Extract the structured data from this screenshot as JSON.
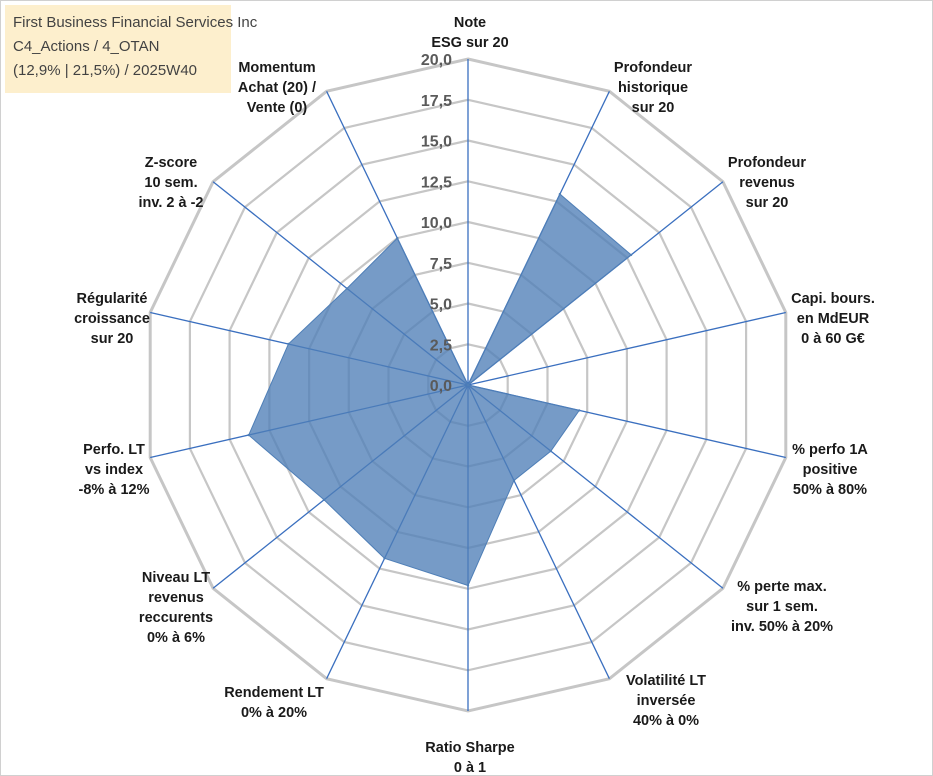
{
  "info_box": {
    "company": "First Business Financial Services Inc",
    "category": "C4_Actions / 4_OTAN",
    "stats": "(12,9% | 21,5%) / 2025W40"
  },
  "colors": {
    "fill": "#4f7fb7",
    "fill_opacity": "0.78",
    "spoke": "#3a6fbf",
    "grid": "#c6c6c6",
    "background": "#ffffff"
  },
  "chart_data": {
    "type": "radar",
    "title": "",
    "rmin": 0,
    "rmax": 20,
    "ticks": [
      "0,0",
      "2,5",
      "5,0",
      "7,5",
      "10,0",
      "12,5",
      "15,0",
      "17,5",
      "20,0"
    ],
    "tick_values": [
      0,
      2.5,
      5,
      7.5,
      10,
      12.5,
      15,
      17.5,
      20
    ],
    "categories": [
      {
        "lines": [
          "Note",
          "ESG sur 20"
        ]
      },
      {
        "lines": [
          "Profondeur",
          "historique",
          "sur 20"
        ]
      },
      {
        "lines": [
          "Profondeur",
          "revenus",
          "sur 20"
        ]
      },
      {
        "lines": [
          "Capi. bours.",
          "en MdEUR",
          "0 à 60 G€"
        ]
      },
      {
        "lines": [
          "% perfo 1A",
          "positive",
          "50% à 80%"
        ]
      },
      {
        "lines": [
          "% perte max.",
          "sur 1 sem.",
          "inv. 50% à 20%"
        ]
      },
      {
        "lines": [
          "Volatilité LT",
          "inversée",
          "40% à 0%"
        ]
      },
      {
        "lines": [
          "Ratio Sharpe",
          "0 à 1"
        ]
      },
      {
        "lines": [
          "Rendement LT",
          "0% à 20%"
        ]
      },
      {
        "lines": [
          "Niveau LT",
          "revenus",
          "reccurents",
          "0% à 6%"
        ]
      },
      {
        "lines": [
          "Perfo. LT",
          "vs index",
          "-8% à 12%"
        ]
      },
      {
        "lines": [
          "Régularité",
          "croissance",
          "sur 20"
        ]
      },
      {
        "lines": [
          "Z-score",
          "10 sem.",
          "inv. 2 à -2"
        ]
      },
      {
        "lines": [
          "Momentum",
          "Achat (20) /",
          "Vente (0)"
        ]
      }
    ],
    "series": [
      {
        "name": "First Business Financial Services Inc",
        "values": [
          0,
          13.0,
          12.8,
          0,
          7.0,
          6.5,
          6.5,
          12.3,
          11.8,
          11.3,
          13.8,
          11.3,
          9.5,
          10.0
        ]
      }
    ]
  }
}
